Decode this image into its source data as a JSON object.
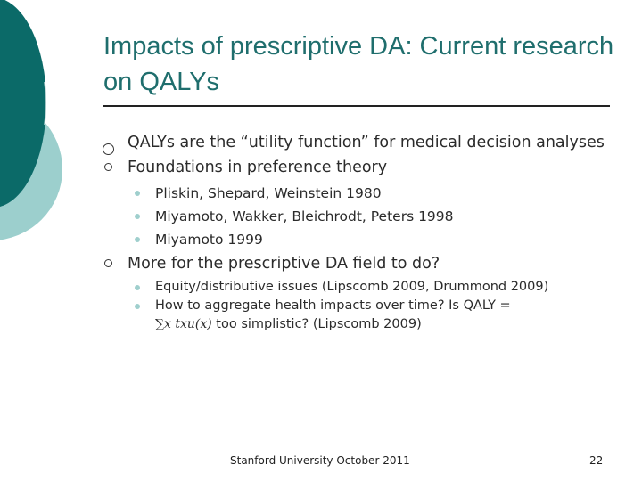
{
  "slide": {
    "title": "Impacts of prescriptive DA: Current research on QALYs",
    "bullets": [
      {
        "text": "QALYs are the “utility function” for medical decision analyses"
      },
      {
        "text": "Foundations in preference theory",
        "subitems": [
          "Pliskin, Shepard, Weinstein 1980",
          "Miyamoto, Wakker, Bleichrodt, Peters 1998",
          "Miyamoto 1999"
        ]
      },
      {
        "text": "More for the prescriptive DA field to do?",
        "subitems": [
          "Equity/distributive issues (Lipscomb 2009, Drummond 2009)",
          "How to aggregate health impacts over time?  Is QALY ="
        ],
        "formula": "∑x txu(x)",
        "formula_tail": " too simplistic? (Lipscomb 2009)"
      }
    ]
  },
  "footer": {
    "text": "Stanford University October 2011",
    "page_number": "22"
  },
  "theme": {
    "title_color": "#1f6e6d",
    "decor_dark": "#0b6a68",
    "decor_light": "#9ccfcd"
  }
}
